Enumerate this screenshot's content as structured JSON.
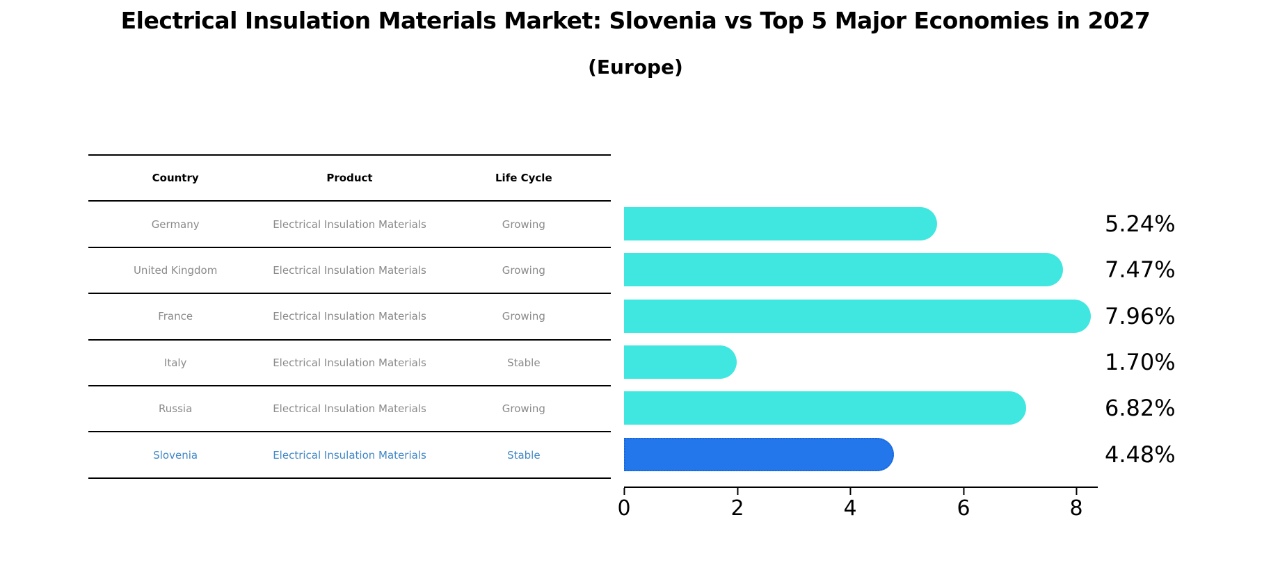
{
  "title": "Electrical Insulation Materials Market: Slovenia vs Top 5 Major Economies in 2027",
  "subtitle": "(Europe)",
  "table": {
    "headers": [
      "Country",
      "Product",
      "Life Cycle"
    ],
    "rows": [
      {
        "country": "Germany",
        "product": "Electrical Insulation Materials",
        "life_cycle": "Growing"
      },
      {
        "country": "United Kingdom",
        "product": "Electrical Insulation Materials",
        "life_cycle": "Growing"
      },
      {
        "country": "France",
        "product": "Electrical Insulation Materials",
        "life_cycle": "Growing"
      },
      {
        "country": "Italy",
        "product": "Electrical Insulation Materials",
        "life_cycle": "Stable"
      },
      {
        "country": "Russia",
        "product": "Electrical Insulation Materials",
        "life_cycle": "Growing"
      },
      {
        "country": "Slovenia",
        "product": "Electrical Insulation Materials",
        "life_cycle": "Stable"
      }
    ]
  },
  "chart_data": {
    "type": "bar",
    "orientation": "horizontal",
    "categories": [
      "Germany",
      "United Kingdom",
      "France",
      "Italy",
      "Russia",
      "Slovenia"
    ],
    "values": [
      5.24,
      7.47,
      7.96,
      1.7,
      6.82,
      4.48
    ],
    "labels": [
      "5.24%",
      "7.47%",
      "7.96%",
      "1.70%",
      "6.82%",
      "4.48%"
    ],
    "xticks": [
      0,
      2,
      4,
      6,
      8
    ],
    "xlim": [
      0,
      8.37
    ],
    "grid": false,
    "legend": false,
    "bar_color": "#40E7E0",
    "highlight_color": "#2377EB",
    "highlight_index": 5,
    "highlight_category": "Slovenia"
  },
  "colors": {
    "bar_cyan": "#40E7E0",
    "bar_blue": "#2377EB",
    "highlight_text": "#4187c5",
    "row_text": "#8a8a8a",
    "heading_text": "#000000"
  }
}
